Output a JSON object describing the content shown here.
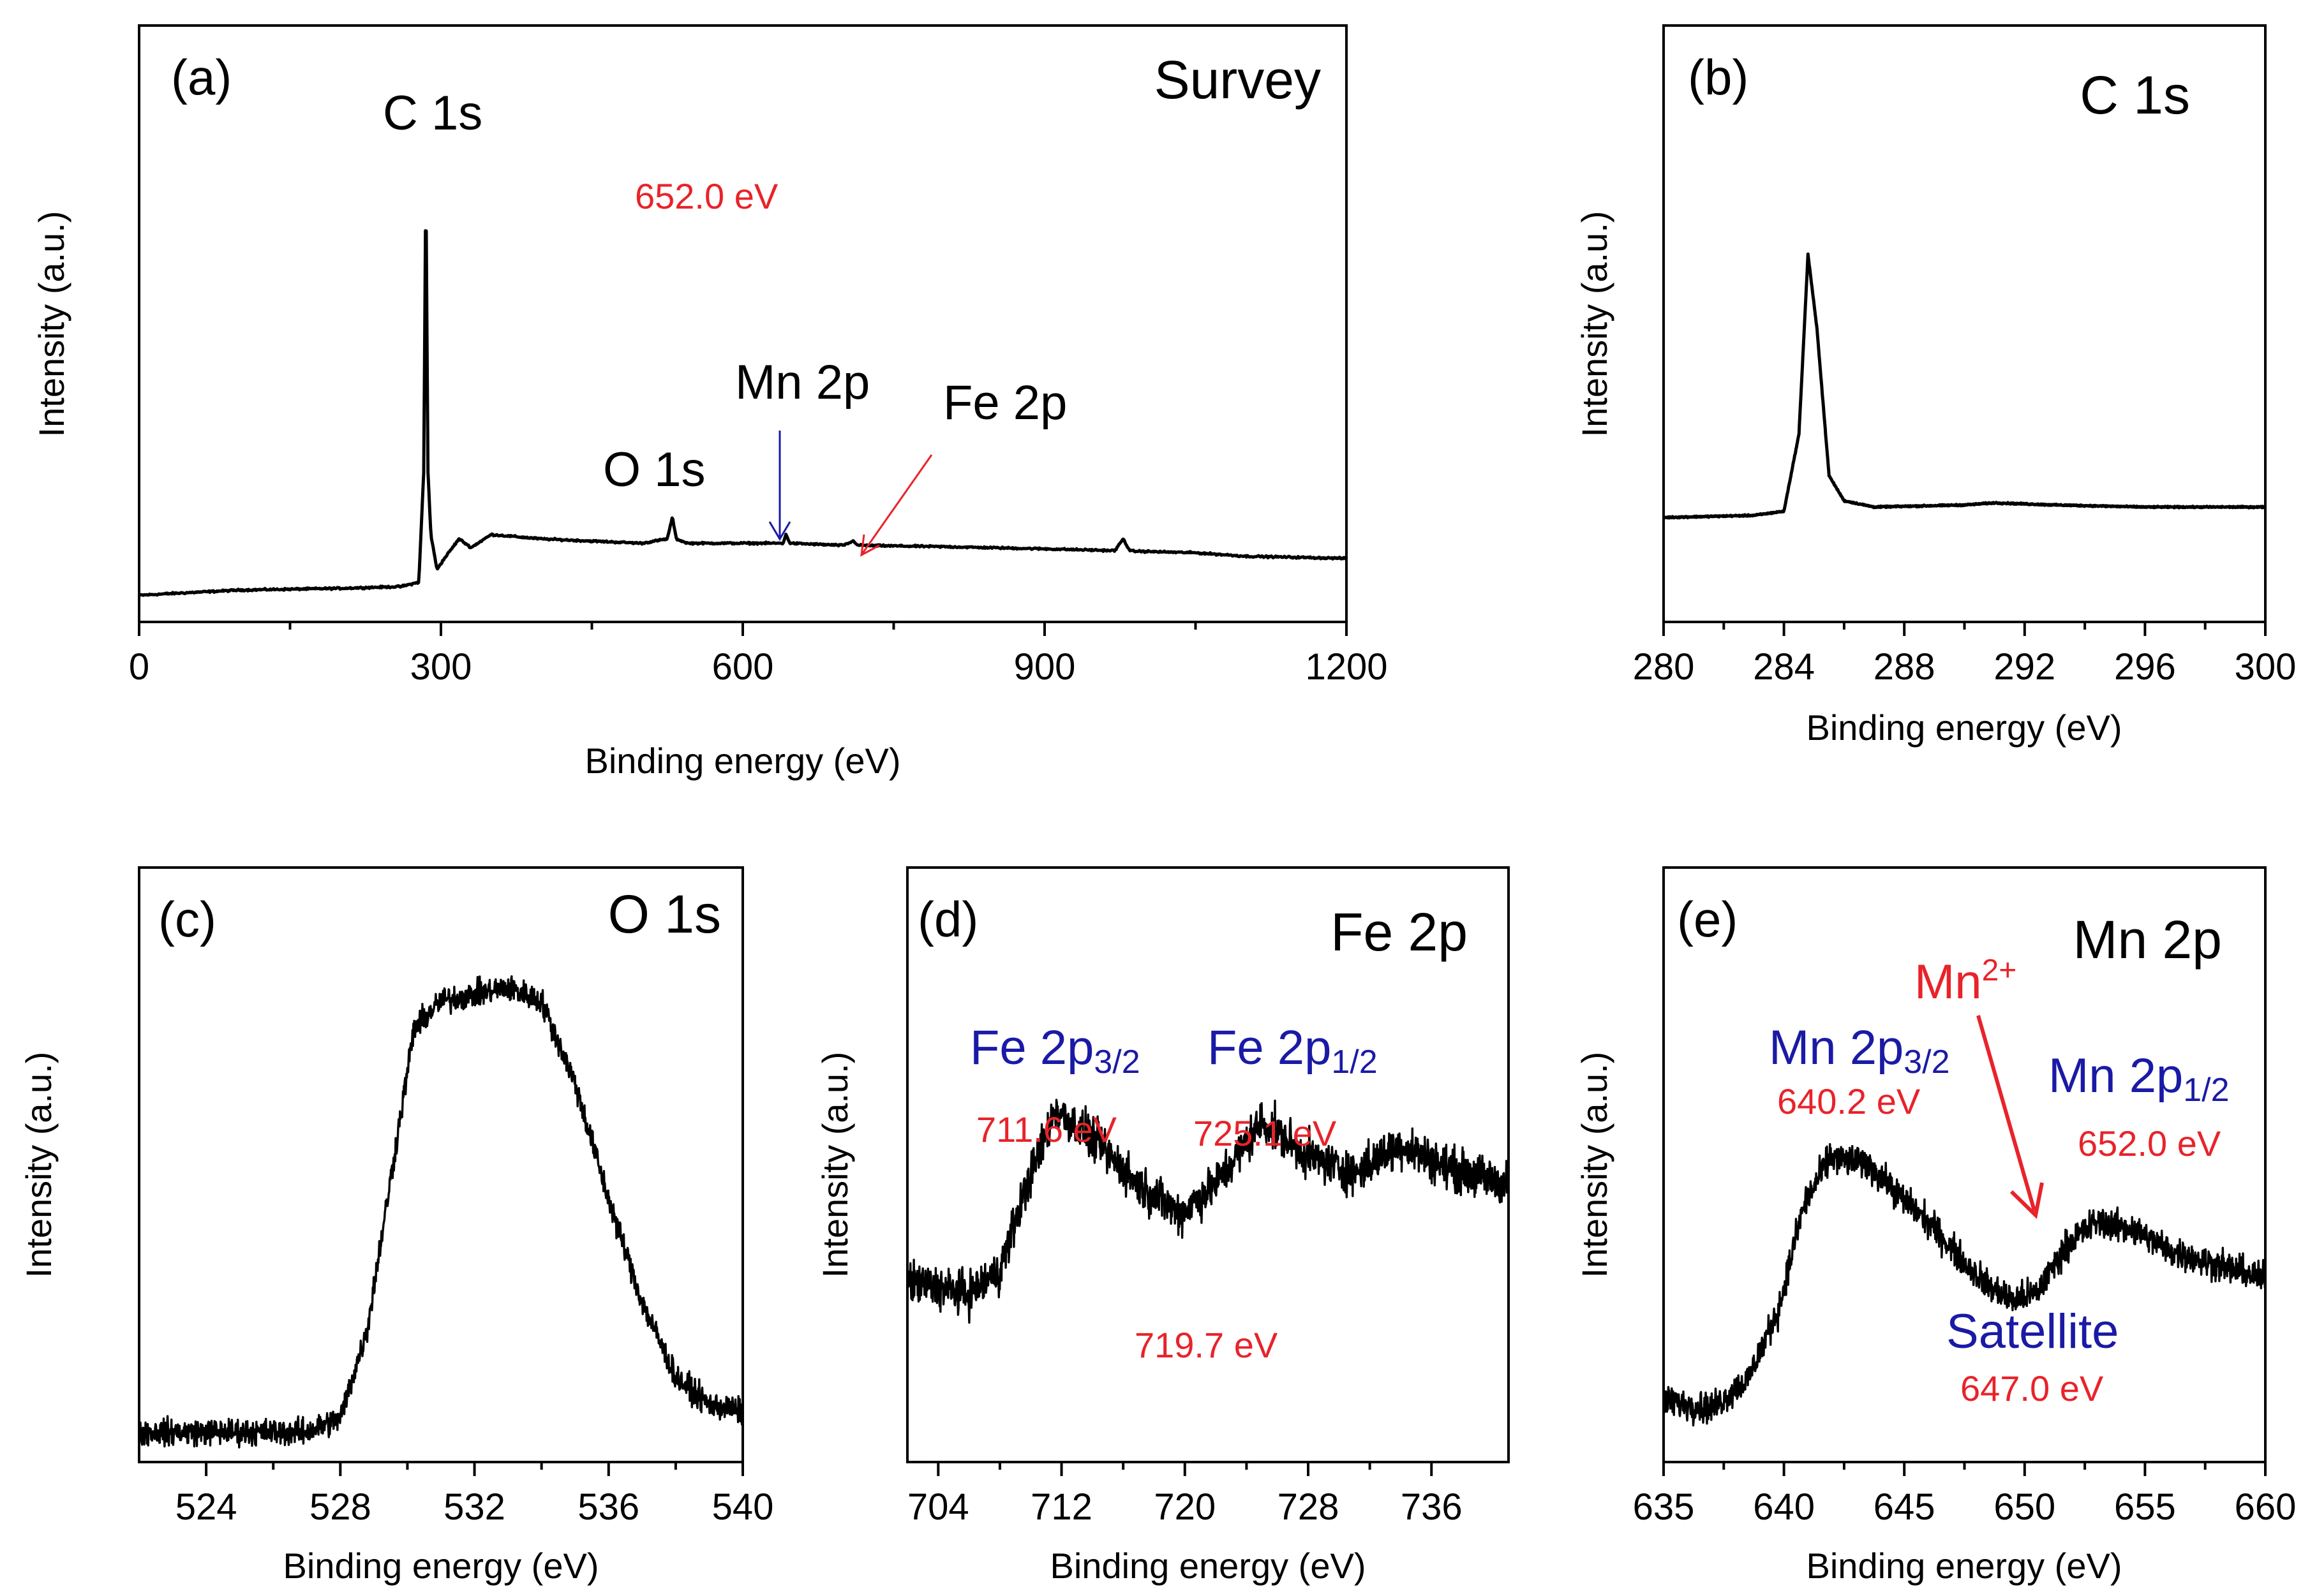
{
  "colors": {
    "text": "#000000",
    "peak_label": "#1a1aa6",
    "energy_value": "#e8232a",
    "line": "#000000"
  },
  "chart_data": [
    {
      "id": "a",
      "type": "line",
      "panel_label": "(a)",
      "title": "Survey",
      "xlabel": "Binding energy (eV)",
      "ylabel": "Intensity (a.u.)",
      "xlim": [
        0,
        1200
      ],
      "ylim": [
        0,
        100
      ],
      "xticks": [
        0,
        300,
        600,
        900,
        1200
      ],
      "xtick_labels": [
        "0",
        "300",
        "600",
        "900",
        "1200"
      ],
      "annotations": [
        {
          "text": "C 1s",
          "kind": "peak",
          "x": 285
        },
        {
          "text": "O 1s",
          "kind": "peak",
          "x": 531
        },
        {
          "text": "Mn 2p",
          "kind": "peak",
          "x": 642
        },
        {
          "text": "Fe 2p",
          "kind": "peak",
          "x": 711
        },
        {
          "text": "652.0 eV",
          "kind": "value"
        }
      ]
    },
    {
      "id": "b",
      "type": "line",
      "panel_label": "(b)",
      "title": "C 1s",
      "xlabel": "Binding energy (eV)",
      "ylabel": "Intensity (a.u.)",
      "xlim": [
        280,
        300
      ],
      "ylim": [
        0,
        100
      ],
      "xticks": [
        280,
        284,
        288,
        292,
        296,
        300
      ],
      "xtick_labels": [
        "280",
        "284",
        "288",
        "292",
        "296",
        "300"
      ],
      "annotations": []
    },
    {
      "id": "c",
      "type": "line",
      "panel_label": "(c)",
      "title": "O 1s",
      "xlabel": "Binding energy (eV)",
      "ylabel": "Intensity (a.u.)",
      "xlim": [
        522,
        540
      ],
      "ylim": [
        0,
        100
      ],
      "xticks": [
        524,
        528,
        532,
        536,
        540
      ],
      "xtick_labels": [
        "524",
        "528",
        "532",
        "536",
        "540"
      ],
      "annotations": []
    },
    {
      "id": "d",
      "type": "line",
      "panel_label": "(d)",
      "title": "Fe 2p",
      "xlabel": "Binding energy (eV)",
      "ylabel": "Intensity (a.u.)",
      "xlim": [
        702,
        741
      ],
      "ylim": [
        0,
        100
      ],
      "xticks": [
        704,
        712,
        720,
        728,
        736
      ],
      "xtick_labels": [
        "704",
        "712",
        "720",
        "728",
        "736"
      ],
      "annotations": [
        {
          "text": "Fe 2p",
          "sub": "3/2",
          "kind": "peak"
        },
        {
          "text": "Fe 2p",
          "sub": "1/2",
          "kind": "peak"
        },
        {
          "text": "711.6 eV",
          "kind": "value",
          "x": 711.6
        },
        {
          "text": "725.1 eV",
          "kind": "value",
          "x": 725.1
        },
        {
          "text": "719.7 eV",
          "kind": "value",
          "x": 719.7
        }
      ]
    },
    {
      "id": "e",
      "type": "line",
      "panel_label": "(e)",
      "title": "Mn 2p",
      "xlabel": "Binding energy (eV)",
      "ylabel": "Intensity (a.u.)",
      "xlim": [
        635,
        660
      ],
      "ylim": [
        0,
        100
      ],
      "xticks": [
        635,
        640,
        645,
        650,
        655,
        660
      ],
      "xtick_labels": [
        "635",
        "640",
        "645",
        "650",
        "655",
        "660"
      ],
      "annotations": [
        {
          "text": "Mn",
          "sup": "2+",
          "kind": "ion"
        },
        {
          "text": "Mn 2p",
          "sub": "3/2",
          "kind": "peak"
        },
        {
          "text": "640.2 eV",
          "kind": "value",
          "x": 640.2
        },
        {
          "text": "Mn 2p",
          "sub": "1/2",
          "kind": "peak"
        },
        {
          "text": "652.0 eV",
          "kind": "value",
          "x": 652.0
        },
        {
          "text": "Satellite",
          "kind": "peak"
        },
        {
          "text": "647.0 eV",
          "kind": "value",
          "x": 647.0
        }
      ]
    }
  ],
  "spectra": {
    "a": {
      "noise": 0.3,
      "points": [
        [
          0,
          1
        ],
        [
          40,
          1.5
        ],
        [
          100,
          2.2
        ],
        [
          200,
          2.6
        ],
        [
          260,
          3
        ],
        [
          278,
          4
        ],
        [
          283,
          30
        ],
        [
          285,
          100
        ],
        [
          287,
          30
        ],
        [
          290,
          15
        ],
        [
          296,
          7
        ],
        [
          305,
          10
        ],
        [
          318,
          14
        ],
        [
          330,
          12
        ],
        [
          350,
          15
        ],
        [
          400,
          14
        ],
        [
          450,
          13.5
        ],
        [
          500,
          13
        ],
        [
          525,
          14
        ],
        [
          530,
          19
        ],
        [
          534,
          14
        ],
        [
          545,
          13
        ],
        [
          600,
          13
        ],
        [
          640,
          13
        ],
        [
          643,
          15
        ],
        [
          647,
          13
        ],
        [
          700,
          12.5
        ],
        [
          710,
          13.5
        ],
        [
          715,
          12.5
        ],
        [
          800,
          12.2
        ],
        [
          900,
          11.7
        ],
        [
          970,
          11.3
        ],
        [
          978,
          14
        ],
        [
          985,
          11.2
        ],
        [
          1050,
          10.8
        ],
        [
          1100,
          10
        ],
        [
          1200,
          9.5
        ]
      ]
    },
    "b": {
      "noise": 0.25,
      "points": [
        [
          280,
          25
        ],
        [
          283,
          25.5
        ],
        [
          284,
          26.5
        ],
        [
          284.5,
          45
        ],
        [
          284.8,
          88
        ],
        [
          285.1,
          70
        ],
        [
          285.5,
          35
        ],
        [
          286,
          29
        ],
        [
          287,
          27.5
        ],
        [
          290,
          28
        ],
        [
          291,
          28.5
        ],
        [
          293,
          28
        ],
        [
          296,
          27.5
        ],
        [
          300,
          27.5
        ]
      ]
    },
    "c": {
      "noise": 2.8,
      "points": [
        [
          522,
          21
        ],
        [
          524,
          21
        ],
        [
          527,
          21
        ],
        [
          528,
          23
        ],
        [
          528.8,
          36
        ],
        [
          529.5,
          58
        ],
        [
          530.2,
          80
        ],
        [
          531,
          84
        ],
        [
          533,
          86
        ],
        [
          534,
          84
        ],
        [
          535,
          72
        ],
        [
          536,
          55
        ],
        [
          537,
          40
        ],
        [
          538,
          29
        ],
        [
          539,
          25
        ],
        [
          540,
          24
        ]
      ]
    },
    "d": {
      "noise": 5.5,
      "points": [
        [
          702,
          30
        ],
        [
          704,
          29
        ],
        [
          706,
          28
        ],
        [
          708,
          32
        ],
        [
          709.5,
          45
        ],
        [
          711.6,
          60
        ],
        [
          714,
          55
        ],
        [
          717,
          47
        ],
        [
          719.7,
          42
        ],
        [
          722,
          47
        ],
        [
          725,
          58
        ],
        [
          728,
          52
        ],
        [
          731,
          49
        ],
        [
          734,
          54
        ],
        [
          737,
          50
        ],
        [
          741,
          47
        ]
      ]
    },
    "e": {
      "noise": 3.2,
      "points": [
        [
          635,
          27
        ],
        [
          637,
          26
        ],
        [
          638.5,
          30
        ],
        [
          639.8,
          40
        ],
        [
          640.8,
          54
        ],
        [
          641.9,
          61
        ],
        [
          643.5,
          60
        ],
        [
          645,
          55
        ],
        [
          646,
          52
        ],
        [
          647.3,
          47
        ],
        [
          648.5,
          43
        ],
        [
          649.5,
          41
        ],
        [
          650.5,
          42
        ],
        [
          651.8,
          49
        ],
        [
          653,
          52
        ],
        [
          654.5,
          51
        ],
        [
          656,
          48
        ],
        [
          658,
          46
        ],
        [
          660,
          44
        ]
      ]
    }
  }
}
